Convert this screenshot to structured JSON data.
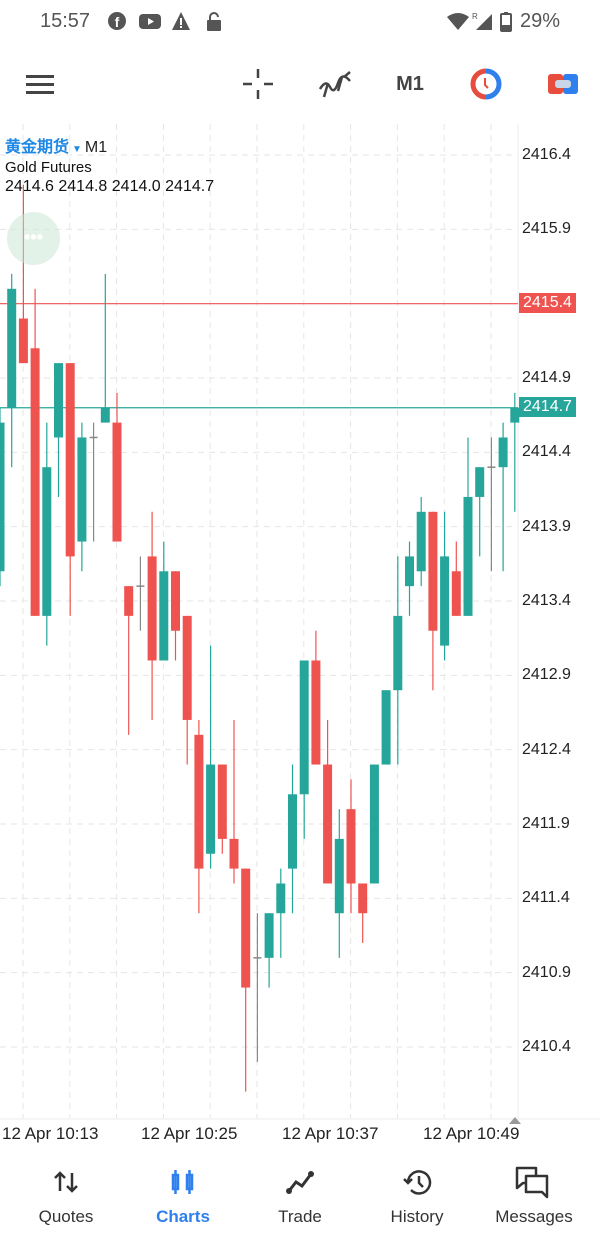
{
  "status_bar": {
    "time": "15:57",
    "battery": "29%"
  },
  "toolbar": {
    "timeframe": "M1"
  },
  "chart": {
    "symbol_cn": "黄金期货",
    "timeframe": "M1",
    "description": "Gold Futures",
    "ohlc_text": "2414.6 2414.8 2414.0 2414.7",
    "more_button": "•••",
    "price_labels": [
      "2416.4",
      "2415.9",
      "2414.9",
      "2414.4",
      "2413.9",
      "2413.4",
      "2412.9",
      "2412.4",
      "2411.9",
      "2411.4",
      "2410.9",
      "2410.4"
    ],
    "ask_line": {
      "value": "2415.4",
      "color": "#ef5350"
    },
    "bid_line": {
      "value": "2414.7",
      "color": "#26a69a"
    },
    "time_labels": [
      "12 Apr 10:13",
      "12 Apr 10:25",
      "12 Apr 10:37",
      "12 Apr 10:49"
    ]
  },
  "chart_data": {
    "type": "candlestick",
    "title": "黄金期货 M1 Gold Futures",
    "ylim": [
      2410.0,
      2416.6
    ],
    "up_color": "#26a69a",
    "down_color": "#ef5350",
    "ohlc": [
      [
        2413.6,
        2414.7,
        2413.5,
        2414.6
      ],
      [
        2414.7,
        2415.6,
        2414.3,
        2415.5
      ],
      [
        2415.3,
        2416.2,
        2415.0,
        2415.0
      ],
      [
        2415.1,
        2415.5,
        2413.3,
        2413.3
      ],
      [
        2413.3,
        2414.6,
        2413.1,
        2414.3
      ],
      [
        2414.5,
        2415.0,
        2414.1,
        2415.0
      ],
      [
        2415.0,
        2415.0,
        2413.3,
        2413.7
      ],
      [
        2413.8,
        2414.6,
        2413.6,
        2414.5
      ],
      [
        2414.5,
        2414.6,
        2413.8,
        2414.5
      ],
      [
        2414.6,
        2415.6,
        2414.6,
        2414.7
      ],
      [
        2414.6,
        2414.8,
        2413.8,
        2413.8
      ],
      [
        2413.5,
        2413.5,
        2412.5,
        2413.3
      ],
      [
        2413.5,
        2413.7,
        2413.2,
        2413.5
      ],
      [
        2413.7,
        2414.0,
        2412.6,
        2413.0
      ],
      [
        2413.0,
        2413.8,
        2413.0,
        2413.6
      ],
      [
        2413.6,
        2413.6,
        2413.0,
        2413.2
      ],
      [
        2413.3,
        2413.3,
        2412.3,
        2412.6
      ],
      [
        2412.5,
        2412.6,
        2411.3,
        2411.6
      ],
      [
        2411.7,
        2413.1,
        2411.6,
        2412.3
      ],
      [
        2412.3,
        2412.3,
        2411.7,
        2411.8
      ],
      [
        2411.8,
        2412.6,
        2411.5,
        2411.6
      ],
      [
        2411.6,
        2411.6,
        2410.1,
        2410.8
      ],
      [
        2411.0,
        2411.3,
        2410.3,
        2411.0
      ],
      [
        2411.0,
        2411.3,
        2410.8,
        2411.3
      ],
      [
        2411.3,
        2411.6,
        2411.0,
        2411.5
      ],
      [
        2411.6,
        2412.3,
        2411.3,
        2412.1
      ],
      [
        2412.1,
        2413.0,
        2411.8,
        2413.0
      ],
      [
        2413.0,
        2413.2,
        2412.3,
        2412.3
      ],
      [
        2412.3,
        2412.6,
        2411.5,
        2411.5
      ],
      [
        2411.3,
        2412.0,
        2411.0,
        2411.8
      ],
      [
        2412.0,
        2412.2,
        2411.3,
        2411.5
      ],
      [
        2411.5,
        2411.5,
        2411.1,
        2411.3
      ],
      [
        2411.5,
        2412.3,
        2411.5,
        2412.3
      ],
      [
        2412.3,
        2412.8,
        2412.3,
        2412.8
      ],
      [
        2412.8,
        2413.7,
        2412.3,
        2413.3
      ],
      [
        2413.5,
        2413.8,
        2413.3,
        2413.7
      ],
      [
        2413.6,
        2414.1,
        2413.5,
        2414.0
      ],
      [
        2414.0,
        2414.0,
        2412.8,
        2413.2
      ],
      [
        2413.1,
        2414.0,
        2413.0,
        2413.7
      ],
      [
        2413.6,
        2413.8,
        2413.3,
        2413.3
      ],
      [
        2413.3,
        2414.5,
        2413.3,
        2414.1
      ],
      [
        2414.1,
        2414.3,
        2413.7,
        2414.3
      ],
      [
        2414.3,
        2414.5,
        2413.6,
        2414.3
      ],
      [
        2414.3,
        2414.6,
        2413.6,
        2414.5
      ],
      [
        2414.6,
        2414.8,
        2414.0,
        2414.7
      ]
    ]
  },
  "nav": [
    {
      "label": "Quotes"
    },
    {
      "label": "Charts"
    },
    {
      "label": "Trade"
    },
    {
      "label": "History"
    },
    {
      "label": "Messages"
    }
  ]
}
